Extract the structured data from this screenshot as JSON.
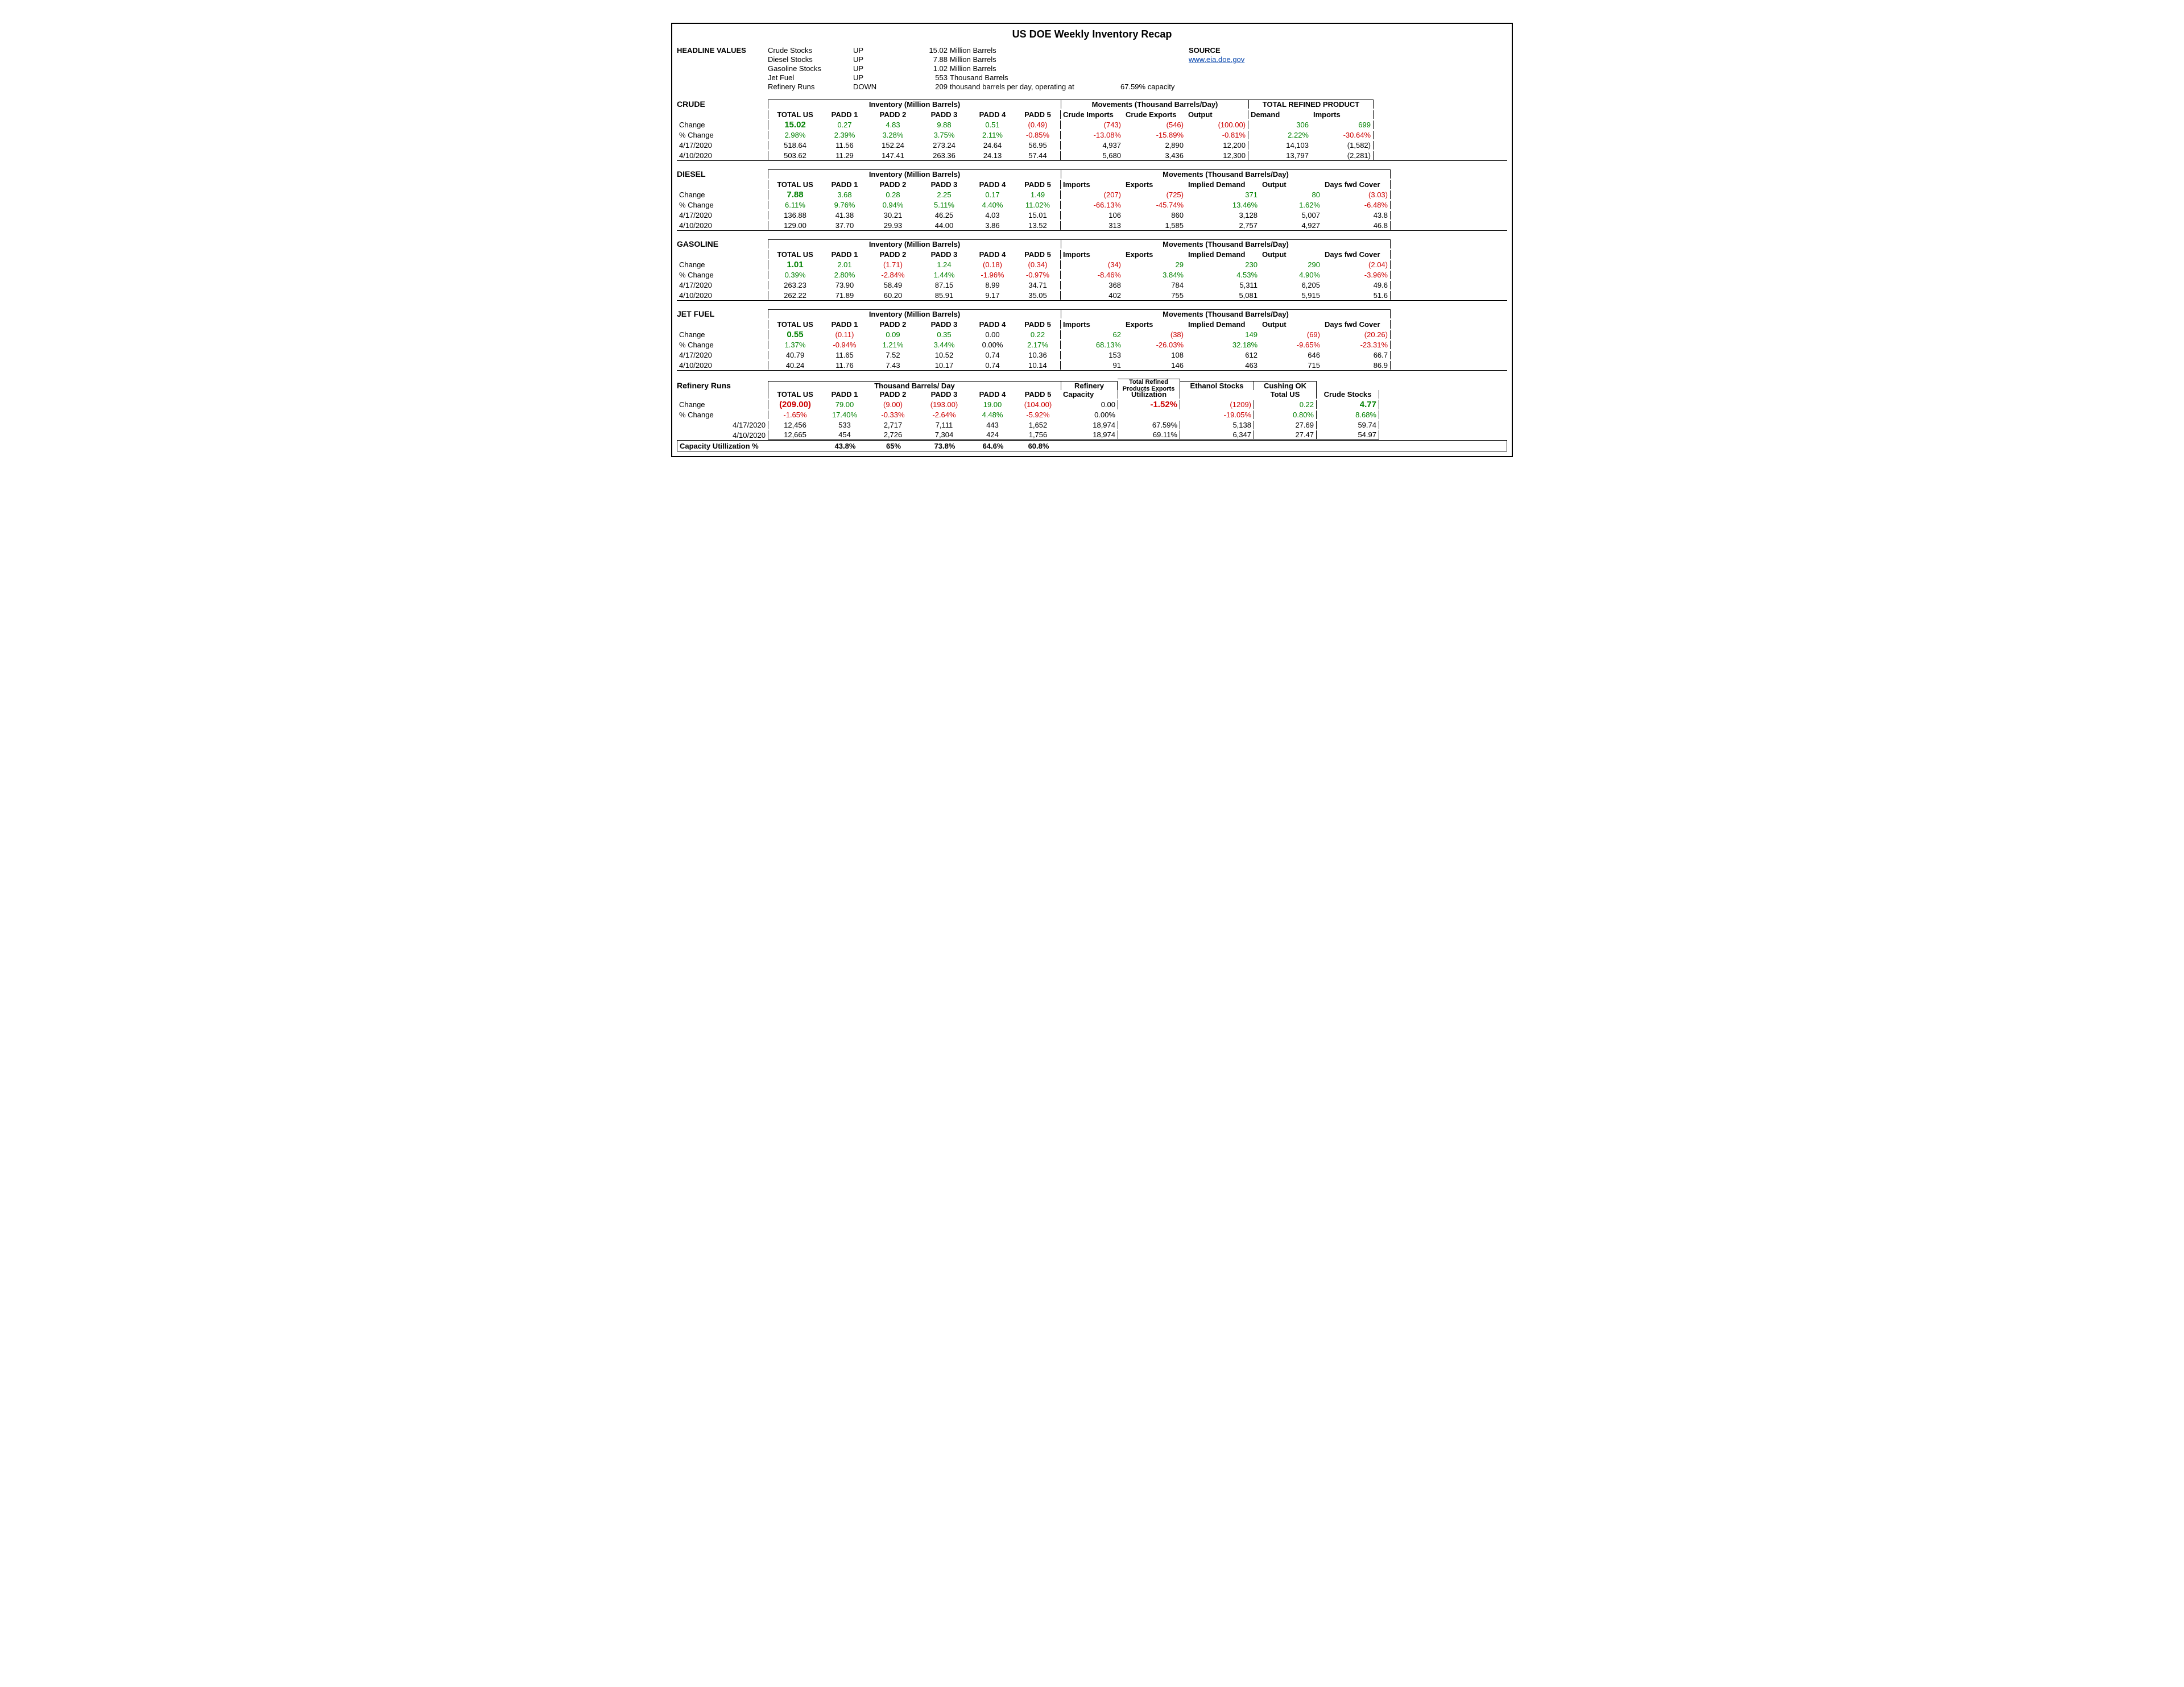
{
  "title": "US DOE Weekly Inventory Recap",
  "source_label": "SOURCE",
  "source_link": "www.eia.doe.gov",
  "headline_label": "HEADLINE VALUES",
  "headline": [
    {
      "name": "Crude Stocks",
      "dir": "UP",
      "val": "15.02",
      "unit": "Million Barrels"
    },
    {
      "name": "Diesel Stocks",
      "dir": "UP",
      "val": "7.88",
      "unit": "Million Barrels"
    },
    {
      "name": "Gasoline Stocks",
      "dir": "UP",
      "val": "1.02",
      "unit": "Million Barrels"
    },
    {
      "name": "Jet Fuel",
      "dir": "UP",
      "val": "553",
      "unit": "Thousand Barrels"
    },
    {
      "name": "Refinery Runs",
      "dir": "DOWN",
      "val": "209",
      "unit": "thousand barrels per day, operating at",
      "extra": "67.59% capacity"
    }
  ],
  "crude": {
    "name": "CRUDE",
    "inv_hdr": "Inventory (Million Barrels)",
    "mov_hdr": "Movements (Thousand Barrels/Day)",
    "trp_hdr": "TOTAL REFINED PRODUCT",
    "cols": [
      "TOTAL US",
      "PADD 1",
      "PADD 2",
      "PADD 3",
      "PADD 4",
      "PADD 5",
      "Crude Imports",
      "Crude Exports",
      "Output",
      "Demand",
      "Imports"
    ],
    "rows": [
      {
        "lbl": "Change",
        "v": [
          "15.02",
          "0.27",
          "4.83",
          "9.88",
          "0.51",
          "(0.49)",
          "(743)",
          "(546)",
          "(100.00)",
          "306",
          "699"
        ],
        "cls": [
          "green bigval",
          "green",
          "green",
          "green",
          "green",
          "red",
          "red",
          "red",
          "red",
          "green",
          "green"
        ]
      },
      {
        "lbl": "% Change",
        "v": [
          "2.98%",
          "2.39%",
          "3.28%",
          "3.75%",
          "2.11%",
          "-0.85%",
          "-13.08%",
          "-15.89%",
          "-0.81%",
          "2.22%",
          "-30.64%"
        ],
        "cls": [
          "green",
          "green",
          "green",
          "green",
          "green",
          "red",
          "red",
          "red",
          "red",
          "green",
          "red"
        ]
      },
      {
        "lbl": "4/17/2020",
        "v": [
          "518.64",
          "11.56",
          "152.24",
          "273.24",
          "24.64",
          "56.95",
          "4,937",
          "2,890",
          "12,200",
          "14,103",
          "(1,582)"
        ],
        "cls": [
          "",
          "",
          "",
          "",
          "",
          "",
          "",
          "",
          "",
          "",
          ""
        ]
      },
      {
        "lbl": "4/10/2020",
        "v": [
          "503.62",
          "11.29",
          "147.41",
          "263.36",
          "24.13",
          "57.44",
          "5,680",
          "3,436",
          "12,300",
          "13,797",
          "(2,281)"
        ],
        "cls": [
          "",
          "",
          "",
          "",
          "",
          "",
          "",
          "",
          "",
          "",
          ""
        ]
      }
    ]
  },
  "diesel": {
    "name": "DIESEL",
    "inv_hdr": "Inventory (Million Barrels)",
    "mov_hdr": "Movements (Thousand Barrels/Day)",
    "cols": [
      "TOTAL US",
      "PADD 1",
      "PADD 2",
      "PADD 3",
      "PADD 4",
      "PADD 5",
      "Imports",
      "Exports",
      "Implied Demand",
      "Output",
      "Days fwd Cover"
    ],
    "rows": [
      {
        "lbl": "Change",
        "v": [
          "7.88",
          "3.68",
          "0.28",
          "2.25",
          "0.17",
          "1.49",
          "(207)",
          "(725)",
          "371",
          "80",
          "(3.03)"
        ],
        "cls": [
          "green bigval",
          "green",
          "green",
          "green",
          "green",
          "green",
          "red",
          "red",
          "green",
          "green",
          "red"
        ]
      },
      {
        "lbl": "% Change",
        "v": [
          "6.11%",
          "9.76%",
          "0.94%",
          "5.11%",
          "4.40%",
          "11.02%",
          "-66.13%",
          "-45.74%",
          "13.46%",
          "1.62%",
          "-6.48%"
        ],
        "cls": [
          "green",
          "green",
          "green",
          "green",
          "green",
          "green",
          "red",
          "red",
          "green",
          "green",
          "red"
        ]
      },
      {
        "lbl": "4/17/2020",
        "v": [
          "136.88",
          "41.38",
          "30.21",
          "46.25",
          "4.03",
          "15.01",
          "106",
          "860",
          "3,128",
          "5,007",
          "43.8"
        ],
        "cls": [
          "",
          "",
          "",
          "",
          "",
          "",
          "",
          "",
          "",
          "",
          ""
        ]
      },
      {
        "lbl": "4/10/2020",
        "v": [
          "129.00",
          "37.70",
          "29.93",
          "44.00",
          "3.86",
          "13.52",
          "313",
          "1,585",
          "2,757",
          "4,927",
          "46.8"
        ],
        "cls": [
          "",
          "",
          "",
          "",
          "",
          "",
          "",
          "",
          "",
          "",
          ""
        ]
      }
    ]
  },
  "gasoline": {
    "name": "GASOLINE",
    "inv_hdr": "Inventory (Million Barrels)",
    "mov_hdr": "Movements (Thousand Barrels/Day)",
    "cols": [
      "TOTAL US",
      "PADD 1",
      "PADD 2",
      "PADD 3",
      "PADD 4",
      "PADD 5",
      "Imports",
      "Exports",
      "Implied Demand",
      "Output",
      "Days fwd Cover"
    ],
    "rows": [
      {
        "lbl": "Change",
        "v": [
          "1.01",
          "2.01",
          "(1.71)",
          "1.24",
          "(0.18)",
          "(0.34)",
          "(34)",
          "29",
          "230",
          "290",
          "(2.04)"
        ],
        "cls": [
          "green bigval",
          "green",
          "red",
          "green",
          "red",
          "red",
          "red",
          "green",
          "green",
          "green",
          "red"
        ]
      },
      {
        "lbl": "% Change",
        "v": [
          "0.39%",
          "2.80%",
          "-2.84%",
          "1.44%",
          "-1.96%",
          "-0.97%",
          "-8.46%",
          "3.84%",
          "4.53%",
          "4.90%",
          "-3.96%"
        ],
        "cls": [
          "green",
          "green",
          "red",
          "green",
          "red",
          "red",
          "red",
          "green",
          "green",
          "green",
          "red"
        ]
      },
      {
        "lbl": "4/17/2020",
        "v": [
          "263.23",
          "73.90",
          "58.49",
          "87.15",
          "8.99",
          "34.71",
          "368",
          "784",
          "5,311",
          "6,205",
          "49.6"
        ],
        "cls": [
          "",
          "",
          "",
          "",
          "",
          "",
          "",
          "",
          "",
          "",
          ""
        ]
      },
      {
        "lbl": "4/10/2020",
        "v": [
          "262.22",
          "71.89",
          "60.20",
          "85.91",
          "9.17",
          "35.05",
          "402",
          "755",
          "5,081",
          "5,915",
          "51.6"
        ],
        "cls": [
          "",
          "",
          "",
          "",
          "",
          "",
          "",
          "",
          "",
          "",
          ""
        ]
      }
    ]
  },
  "jetfuel": {
    "name": "JET FUEL",
    "inv_hdr": "Inventory (Million Barrels)",
    "mov_hdr": "Movements (Thousand Barrels/Day)",
    "cols": [
      "TOTAL US",
      "PADD 1",
      "PADD 2",
      "PADD 3",
      "PADD 4",
      "PADD 5",
      "Imports",
      "Exports",
      "Implied Demand",
      "Output",
      "Days fwd Cover"
    ],
    "rows": [
      {
        "lbl": "Change",
        "v": [
          "0.55",
          "(0.11)",
          "0.09",
          "0.35",
          "0.00",
          "0.22",
          "62",
          "(38)",
          "149",
          "(69)",
          "(20.26)"
        ],
        "cls": [
          "green bigval",
          "red",
          "green",
          "green",
          "",
          "green",
          "green",
          "red",
          "green",
          "red",
          "red"
        ]
      },
      {
        "lbl": "% Change",
        "v": [
          "1.37%",
          "-0.94%",
          "1.21%",
          "3.44%",
          "0.00%",
          "2.17%",
          "68.13%",
          "-26.03%",
          "32.18%",
          "-9.65%",
          "-23.31%"
        ],
        "cls": [
          "green",
          "red",
          "green",
          "green",
          "",
          "green",
          "green",
          "red",
          "green",
          "red",
          "red"
        ]
      },
      {
        "lbl": "4/17/2020",
        "v": [
          "40.79",
          "11.65",
          "7.52",
          "10.52",
          "0.74",
          "10.36",
          "153",
          "108",
          "612",
          "646",
          "66.7"
        ],
        "cls": [
          "",
          "",
          "",
          "",
          "",
          "",
          "",
          "",
          "",
          "",
          ""
        ]
      },
      {
        "lbl": "4/10/2020",
        "v": [
          "40.24",
          "11.76",
          "7.43",
          "10.17",
          "0.74",
          "10.14",
          "91",
          "146",
          "463",
          "715",
          "86.9"
        ],
        "cls": [
          "",
          "",
          "",
          "",
          "",
          "",
          "",
          "",
          "",
          "",
          ""
        ]
      }
    ]
  },
  "refinery": {
    "name": "Refinery Runs",
    "tbd_hdr": "Thousand Barrels/ Day",
    "ref_hdr": "Refinery",
    "trpe_hdr": "Total Refined Products Exports",
    "eth_hdr": "Ethanol Stocks",
    "cush_hdr": "Cushing OK",
    "cols": [
      "TOTAL US",
      "PADD 1",
      "PADD 2",
      "PADD 3",
      "PADD 4",
      "PADD 5",
      "Capacity",
      "Utilization",
      "",
      "Total US",
      "Crude Stocks"
    ],
    "rows": [
      {
        "lbl": "Change",
        "v": [
          "(209.00)",
          "79.00",
          "(9.00)",
          "(193.00)",
          "19.00",
          "(104.00)",
          "0.00",
          "-1.52%",
          "(1209)",
          "0.22",
          "4.77"
        ],
        "cls": [
          "red bigval",
          "green",
          "red",
          "red",
          "green",
          "red",
          "",
          "red bigval",
          "red",
          "green",
          "green bigval"
        ]
      },
      {
        "lbl": "% Change",
        "v": [
          "-1.65%",
          "17.40%",
          "-0.33%",
          "-2.64%",
          "4.48%",
          "-5.92%",
          "0.00%",
          "",
          "-19.05%",
          "0.80%",
          "8.68%"
        ],
        "cls": [
          "red",
          "green",
          "red",
          "red",
          "green",
          "red",
          "",
          "",
          "red",
          "green",
          "green"
        ]
      },
      {
        "lbl": "4/17/2020",
        "v": [
          "12,456",
          "533",
          "2,717",
          "7,111",
          "443",
          "1,652",
          "18,974",
          "67.59%",
          "5,138",
          "27.69",
          "59.74"
        ],
        "cls": [
          "",
          "",
          "",
          "",
          "",
          "",
          "",
          "",
          "",
          "",
          ""
        ]
      },
      {
        "lbl": "4/10/2020",
        "v": [
          "12,665",
          "454",
          "2,726",
          "7,304",
          "424",
          "1,756",
          "18,974",
          "69.11%",
          "6,347",
          "27.47",
          "54.97"
        ],
        "cls": [
          "",
          "",
          "",
          "",
          "",
          "",
          "",
          "",
          "",
          "",
          ""
        ]
      }
    ],
    "caputil": {
      "lbl": "Capacity Utillization %",
      "v": [
        "",
        "43.8%",
        "65%",
        "73.8%",
        "64.6%",
        "60.8%",
        "",
        "",
        "",
        "",
        ""
      ]
    }
  }
}
